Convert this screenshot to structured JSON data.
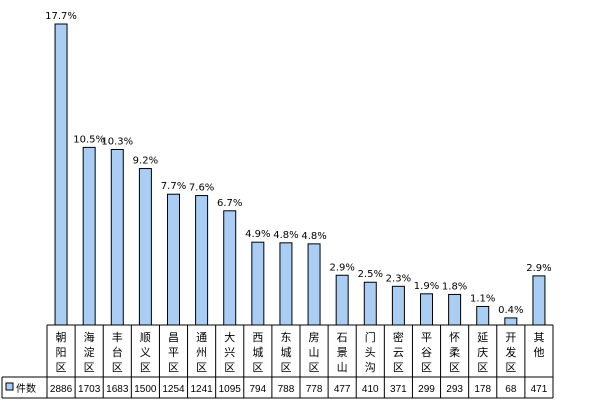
{
  "chart_data": {
    "type": "bar",
    "categories": [
      "朝阳区",
      "海淀区",
      "丰台区",
      "顺义区",
      "昌平区",
      "通州区",
      "大兴区",
      "西城区",
      "东城区",
      "房山区",
      "石景山",
      "门头沟",
      "密云区",
      "平谷区",
      "怀柔区",
      "延庆区",
      "开发区",
      "其他"
    ],
    "values": [
      2886,
      1703,
      1683,
      1500,
      1254,
      1241,
      1095,
      794,
      788,
      778,
      477,
      410,
      371,
      299,
      293,
      178,
      68,
      471
    ],
    "percent_labels": [
      "17.7%",
      "10.5%",
      "10.3%",
      "9.2%",
      "7.7%",
      "7.6%",
      "6.7%",
      "4.9%",
      "4.8%",
      "4.8%",
      "2.9%",
      "2.5%",
      "2.3%",
      "1.9%",
      "1.8%",
      "1.1%",
      "0.4%",
      "2.9%"
    ],
    "series": [
      {
        "name": "件数",
        "values": [
          2886,
          1703,
          1683,
          1500,
          1254,
          1241,
          1095,
          794,
          788,
          778,
          477,
          410,
          371,
          299,
          293,
          178,
          68,
          471
        ]
      }
    ],
    "title": "",
    "xlabel": "",
    "ylabel": "",
    "ylim": [
      0,
      2886
    ],
    "grid": false,
    "legend": "bottom-left",
    "colors": {
      "bar_fill": "#a9cdf3",
      "bar_stroke": "#000000",
      "axis": "#000000"
    }
  }
}
